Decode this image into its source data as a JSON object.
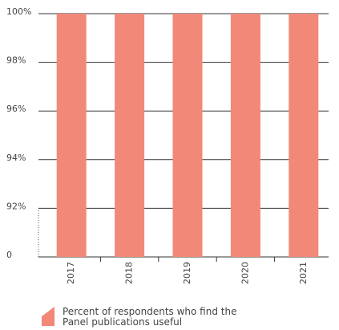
{
  "chart_data": {
    "type": "bar",
    "categories": [
      "2017",
      "2018",
      "2019",
      "2020",
      "2021"
    ],
    "series": [
      {
        "name": "Percent of respondents who find the Panel publications useful",
        "color": "#f28878",
        "values": [
          100,
          100,
          100,
          100,
          100
        ]
      }
    ],
    "ylim": [
      0,
      100
    ],
    "yticks": [
      {
        "value": 0,
        "label": "0"
      },
      {
        "value": 92,
        "label": "92%"
      },
      {
        "value": 94,
        "label": "94%"
      },
      {
        "value": 96,
        "label": "96%"
      },
      {
        "value": 98,
        "label": "98%"
      },
      {
        "value": 100,
        "label": "100%"
      }
    ],
    "axis_break": true,
    "grid": true,
    "legend": "bottom"
  }
}
